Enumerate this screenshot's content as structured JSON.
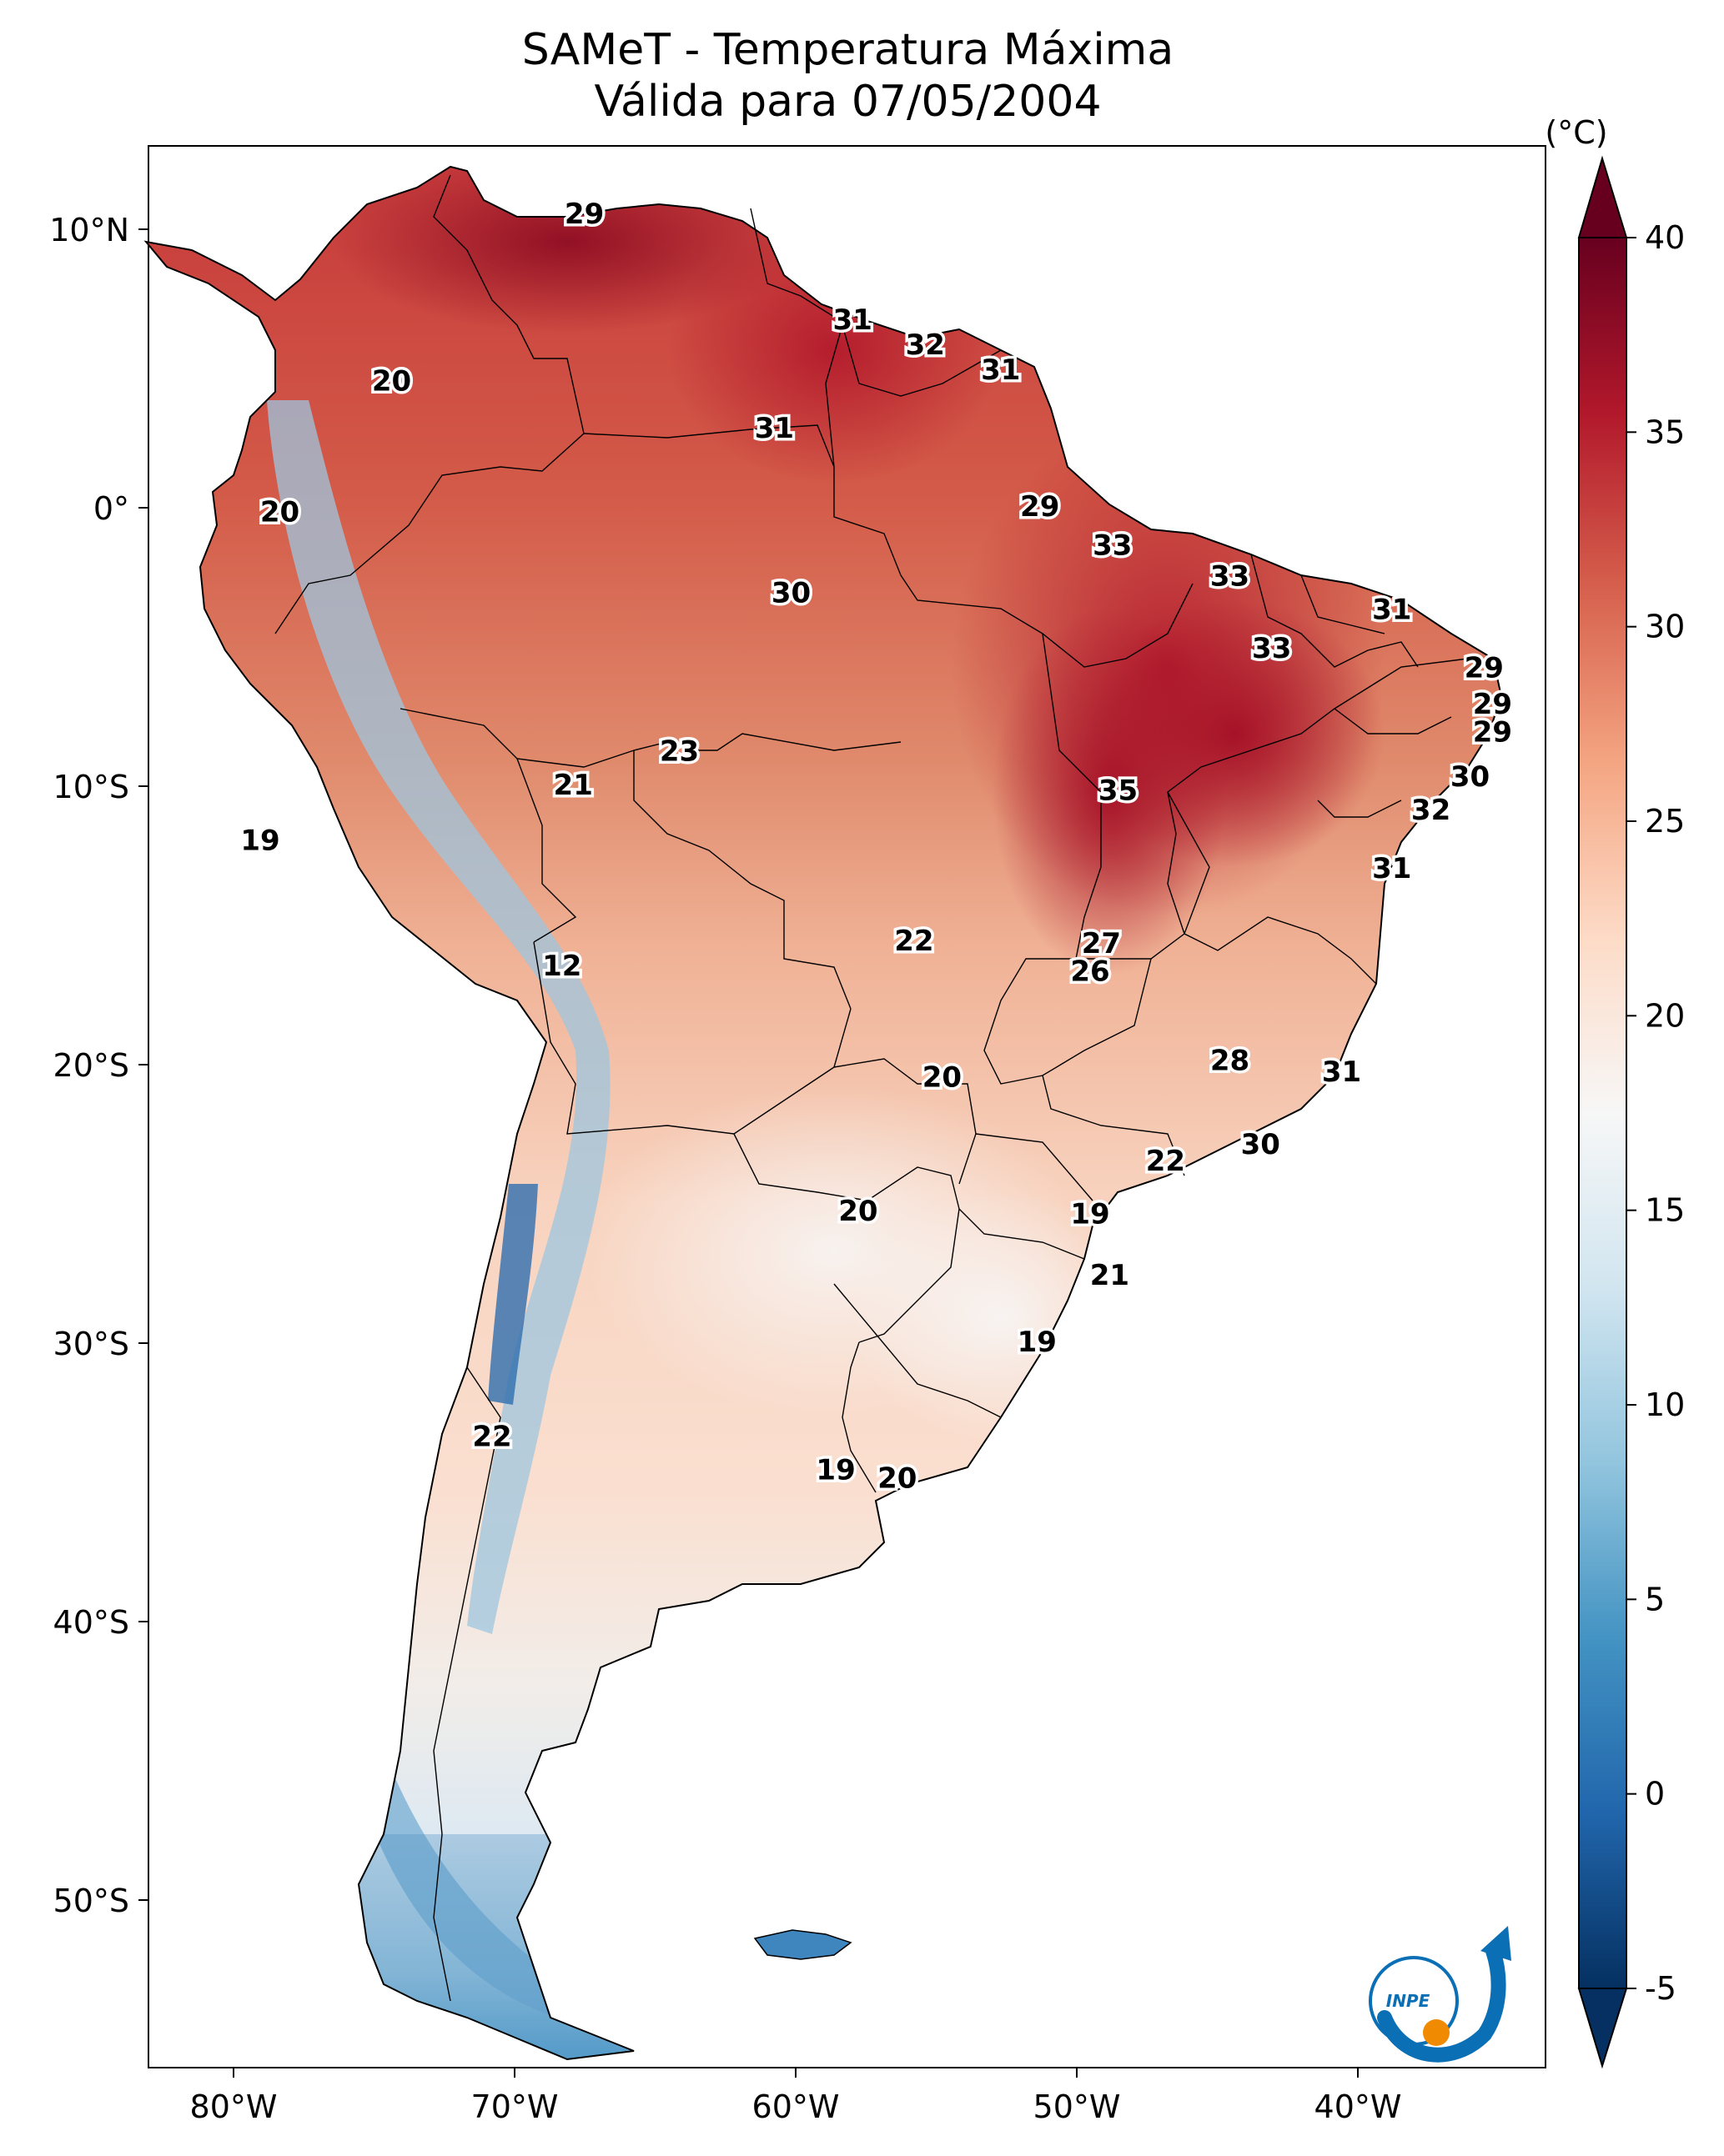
{
  "title": {
    "line1": "SAMeT - Temperatura Máxima",
    "line2": "Válida para 07/05/2004"
  },
  "map": {
    "lon_range": [
      -83,
      -33
    ],
    "lat_range": [
      -56,
      13
    ],
    "lon_ticks": [
      "80°W",
      "70°W",
      "60°W",
      "50°W",
      "40°W"
    ],
    "lat_ticks": [
      "10°N",
      "0°",
      "10°S",
      "20°S",
      "30°S",
      "40°S",
      "50°S"
    ],
    "city_values": [
      {
        "lon": -67.4,
        "lat": 10.5,
        "value": "29"
      },
      {
        "lon": -57.8,
        "lat": 6.7,
        "value": "31"
      },
      {
        "lon": -55.2,
        "lat": 5.8,
        "value": "32"
      },
      {
        "lon": -52.5,
        "lat": 4.9,
        "value": "31"
      },
      {
        "lon": -74.3,
        "lat": 4.5,
        "value": "20"
      },
      {
        "lon": -60.6,
        "lat": 2.8,
        "value": "31"
      },
      {
        "lon": -78.3,
        "lat": -0.2,
        "value": "20"
      },
      {
        "lon": -51.1,
        "lat": 0.0,
        "value": "29"
      },
      {
        "lon": -48.5,
        "lat": -1.4,
        "value": "33"
      },
      {
        "lon": -44.3,
        "lat": -2.5,
        "value": "33"
      },
      {
        "lon": -60.0,
        "lat": -3.1,
        "value": "30"
      },
      {
        "lon": -38.5,
        "lat": -3.7,
        "value": "31"
      },
      {
        "lon": -42.8,
        "lat": -5.1,
        "value": "33"
      },
      {
        "lon": -35.2,
        "lat": -5.8,
        "value": "29"
      },
      {
        "lon": -34.9,
        "lat": -7.1,
        "value": "29"
      },
      {
        "lon": -34.9,
        "lat": -8.1,
        "value": "29"
      },
      {
        "lon": -64.0,
        "lat": -8.8,
        "value": "23"
      },
      {
        "lon": -35.7,
        "lat": -9.7,
        "value": "30"
      },
      {
        "lon": -67.8,
        "lat": -10.0,
        "value": "21"
      },
      {
        "lon": -48.3,
        "lat": -10.2,
        "value": "35"
      },
      {
        "lon": -37.1,
        "lat": -10.9,
        "value": "32"
      },
      {
        "lon": -79.0,
        "lat": -12.0,
        "value": "19"
      },
      {
        "lon": -38.5,
        "lat": -13.0,
        "value": "31"
      },
      {
        "lon": -55.6,
        "lat": -15.6,
        "value": "22"
      },
      {
        "lon": -48.9,
        "lat": -15.7,
        "value": "27"
      },
      {
        "lon": -49.3,
        "lat": -16.7,
        "value": "26"
      },
      {
        "lon": -68.2,
        "lat": -16.5,
        "value": "12"
      },
      {
        "lon": -44.3,
        "lat": -19.9,
        "value": "28"
      },
      {
        "lon": -54.6,
        "lat": -20.5,
        "value": "20"
      },
      {
        "lon": -40.3,
        "lat": -20.3,
        "value": "31"
      },
      {
        "lon": -43.2,
        "lat": -22.9,
        "value": "30"
      },
      {
        "lon": -46.6,
        "lat": -23.5,
        "value": "22"
      },
      {
        "lon": -57.6,
        "lat": -25.3,
        "value": "20"
      },
      {
        "lon": -49.3,
        "lat": -25.4,
        "value": "19"
      },
      {
        "lon": -48.6,
        "lat": -27.6,
        "value": "21"
      },
      {
        "lon": -51.2,
        "lat": -30.0,
        "value": "19"
      },
      {
        "lon": -70.7,
        "lat": -33.4,
        "value": "22"
      },
      {
        "lon": -58.4,
        "lat": -34.6,
        "value": "19"
      },
      {
        "lon": -56.2,
        "lat": -34.9,
        "value": "20"
      }
    ]
  },
  "colorbar": {
    "unit": "(°C)",
    "ticks": [
      "40",
      "35",
      "30",
      "25",
      "20",
      "15",
      "10",
      "5",
      "0",
      "-5"
    ],
    "range": [
      -5,
      40
    ],
    "colors": [
      "#053061",
      "#2166ac",
      "#4393c3",
      "#92c5de",
      "#d1e5f0",
      "#f7f7f7",
      "#fddbc7",
      "#f4a582",
      "#d6604d",
      "#b2182b",
      "#67001f"
    ]
  },
  "logo": {
    "text": "INPE",
    "name": "inpe-logo",
    "colors": {
      "blue": "#0a6fb5",
      "orange": "#f08a00"
    }
  }
}
